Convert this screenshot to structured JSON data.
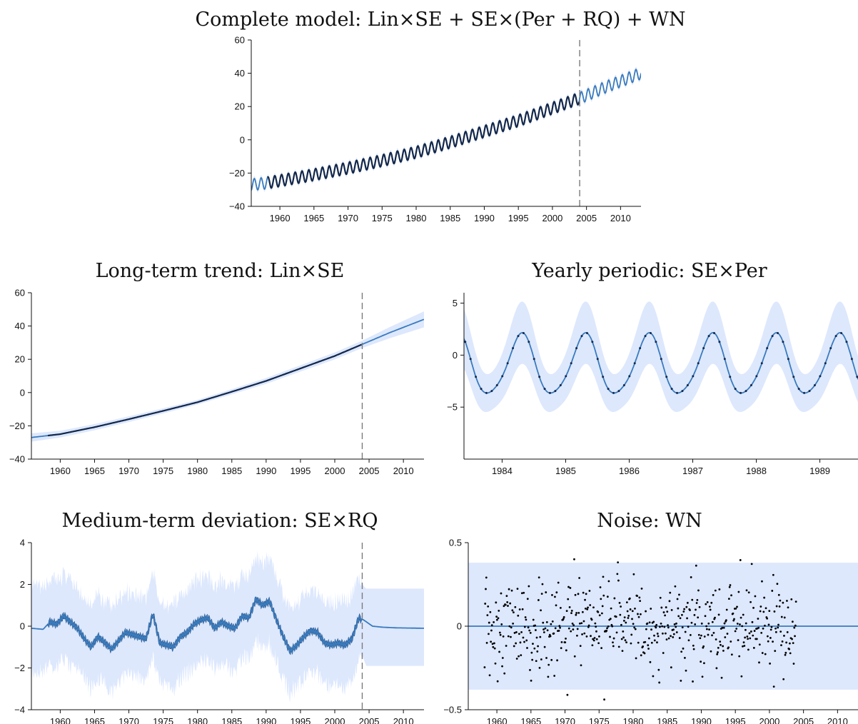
{
  "colors": {
    "band": "#dde8fd",
    "mean": "#3a7bbd",
    "observed": "#14284b",
    "points": "#000000",
    "split_line": "#7a7a7a"
  },
  "chart_data": [
    {
      "id": "complete",
      "type": "line",
      "title": "Complete model: Lin×SE + SE×(Per + RQ) + WN",
      "xlim": [
        1955.8,
        2013
      ],
      "ylim": [
        -40,
        60
      ],
      "x_ticks": [
        1960,
        1965,
        1970,
        1975,
        1980,
        1985,
        1990,
        1995,
        2000,
        2005,
        2010
      ],
      "y_ticks": [
        -40,
        -20,
        0,
        20,
        40,
        60
      ],
      "y_tick_labels": [
        "−40",
        "−20",
        "0",
        "20",
        "40",
        "60"
      ],
      "observed_range": [
        1958.2,
        2003.9
      ],
      "forecast_start": 2004,
      "trend": {
        "x": [
          1955.8,
          1958,
          1965,
          1970,
          1975,
          1980,
          1985,
          1990,
          1995,
          2000,
          2004,
          2008,
          2013
        ],
        "y": [
          -27,
          -26,
          -21,
          -17,
          -12.5,
          -7.5,
          -1.5,
          5,
          11.5,
          19,
          25,
          32,
          40
        ]
      },
      "seasonal_amplitude": 3.5,
      "period_years": 1
    },
    {
      "id": "trend",
      "type": "line",
      "title": "Long-term trend: Lin×SE",
      "xlim": [
        1955.8,
        2013
      ],
      "ylim": [
        -40,
        60
      ],
      "x_ticks": [
        1960,
        1965,
        1970,
        1975,
        1980,
        1985,
        1990,
        1995,
        2000,
        2005,
        2010
      ],
      "y_ticks": [
        -40,
        -20,
        0,
        20,
        40,
        60
      ],
      "y_tick_labels": [
        "−40",
        "−20",
        "0",
        "20",
        "40",
        "60"
      ],
      "observed_range": [
        1958.2,
        2003.9
      ],
      "forecast_start": 2004,
      "series": {
        "x": [
          1955.8,
          1960,
          1965,
          1970,
          1975,
          1980,
          1985,
          1990,
          1995,
          2000,
          2004,
          2008,
          2013
        ],
        "y": [
          -27,
          -25,
          -20.8,
          -16,
          -11,
          -5.8,
          0.5,
          7,
          14.5,
          22,
          29,
          36,
          44
        ]
      },
      "band_half_width": {
        "x": [
          1955.8,
          1960,
          1980,
          2004,
          2013
        ],
        "y": [
          2.5,
          2,
          1.4,
          2.2,
          4.8
        ]
      }
    },
    {
      "id": "yearly",
      "type": "line",
      "title": "Yearly periodic: SE×Per",
      "xlim": [
        1983.4,
        1989.6
      ],
      "ylim": [
        -10,
        6
      ],
      "x_ticks": [
        1984,
        1985,
        1986,
        1987,
        1988,
        1989
      ],
      "y_ticks": [
        -5,
        0,
        5
      ],
      "y_tick_labels": [
        "−5",
        "0",
        "5"
      ],
      "peak": 2.2,
      "trough": -4.3,
      "period_years": 1,
      "band_half_width_range": [
        1.8,
        3
      ]
    },
    {
      "id": "medium",
      "type": "line",
      "title": "Medium-term deviation: SE×RQ",
      "xlim": [
        1955.8,
        2013
      ],
      "ylim": [
        -4,
        4
      ],
      "x_ticks": [
        1960,
        1965,
        1970,
        1975,
        1980,
        1985,
        1990,
        1995,
        2000,
        2005,
        2010
      ],
      "y_ticks": [
        -4,
        -2,
        0,
        2,
        4
      ],
      "y_tick_labels": [
        "−4",
        "−2",
        "0",
        "2",
        "4"
      ],
      "observed_range": [
        1958.2,
        2003.9
      ],
      "forecast_start": 2004,
      "series": {
        "x": [
          1955.8,
          1957.5,
          1958.5,
          1959.5,
          1960.5,
          1961.5,
          1962.5,
          1963.5,
          1964.5,
          1965.5,
          1966.5,
          1967.5,
          1968.5,
          1969.5,
          1970.5,
          1971.5,
          1972.5,
          1973.5,
          1974.5,
          1975.5,
          1976.5,
          1977.5,
          1978.5,
          1979.5,
          1980.5,
          1981.5,
          1982.5,
          1983.5,
          1984.5,
          1985.5,
          1986.5,
          1987.5,
          1988.5,
          1989.5,
          1990.5,
          1991.5,
          1992.5,
          1993.5,
          1994.5,
          1995.5,
          1996.5,
          1997.5,
          1998.5,
          1999.5,
          2000.5,
          2001.5,
          2002.5,
          2003.5,
          2004.2,
          2005.5,
          2007,
          2009,
          2013
        ],
        "y": [
          -0.1,
          -0.15,
          0.2,
          0.1,
          0.5,
          0.2,
          -0.1,
          -0.6,
          -1.0,
          -0.5,
          -0.8,
          -1.1,
          -0.7,
          -0.3,
          -0.4,
          -0.5,
          -0.6,
          0.6,
          -0.8,
          -0.9,
          -1.0,
          -0.5,
          -0.3,
          0.1,
          0.3,
          0.4,
          -0.1,
          0.2,
          0.0,
          -0.1,
          0.5,
          0.4,
          1.3,
          1.0,
          1.2,
          0.3,
          -0.5,
          -1.2,
          -0.9,
          -0.5,
          -0.2,
          -0.3,
          -0.8,
          -0.9,
          -0.8,
          -0.9,
          -0.6,
          0.4,
          0.3,
          0.0,
          -0.05,
          -0.08,
          -0.1
        ]
      },
      "band_half_width_observed": [
        1.6,
        2.4
      ],
      "band_forecast": [
        -1.9,
        1.8
      ]
    },
    {
      "id": "noise",
      "type": "scatter",
      "title": "Noise: WN",
      "xlim": [
        1955.8,
        2013
      ],
      "ylim": [
        -0.5,
        0.5
      ],
      "x_ticks": [
        1960,
        1965,
        1970,
        1975,
        1980,
        1985,
        1990,
        1995,
        2000,
        2005,
        2010
      ],
      "y_ticks": [
        -0.5,
        0,
        0.5
      ],
      "y_tick_labels": [
        "−0.5",
        "0",
        "0.5"
      ],
      "observed_range": [
        1958.2,
        2003.9
      ],
      "mean": 0,
      "band": [
        -0.38,
        0.38
      ],
      "point_count": 550,
      "point_spread": 0.19
    }
  ]
}
